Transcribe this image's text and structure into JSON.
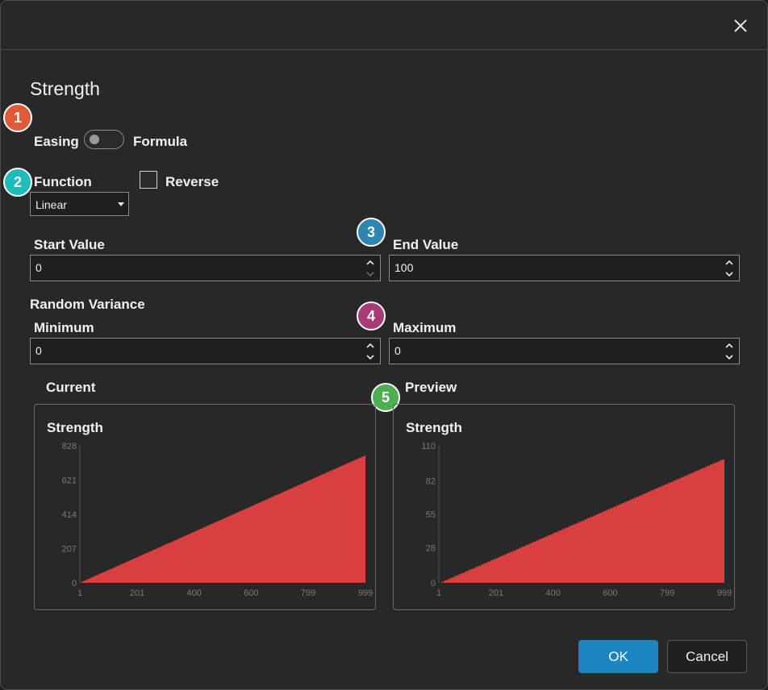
{
  "dialog": {
    "title": "Strength",
    "close_icon": "close-icon"
  },
  "mode": {
    "easing_label": "Easing",
    "formula_label": "Formula",
    "formula_enabled": false
  },
  "function": {
    "label": "Function",
    "selected": "Linear",
    "reverse_label": "Reverse",
    "reverse_checked": false
  },
  "values": {
    "start_label": "Start Value",
    "start_value": "0",
    "end_label": "End Value",
    "end_value": "100"
  },
  "variance": {
    "section_label": "Random Variance",
    "min_label": "Minimum",
    "min_value": "0",
    "max_label": "Maximum",
    "max_value": "0"
  },
  "charts": {
    "current_label": "Current",
    "preview_label": "Preview"
  },
  "badges": {
    "b1": {
      "text": "1",
      "color": "#e05a3a"
    },
    "b2": {
      "text": "2",
      "color": "#1fbcbc"
    },
    "b3": {
      "text": "3",
      "color": "#2e85b0"
    },
    "b4": {
      "text": "4",
      "color": "#a83b74"
    },
    "b5": {
      "text": "5",
      "color": "#4caf50"
    }
  },
  "buttons": {
    "ok": "OK",
    "cancel": "Cancel"
  },
  "colors": {
    "accent": "#1a85c0",
    "fill": "#d84040"
  },
  "chart_data": [
    {
      "type": "area",
      "title": "Strength",
      "x_ticks": [
        "1",
        "201",
        "400",
        "600",
        "799",
        "999"
      ],
      "y_ticks": [
        "0",
        "207",
        "414",
        "621",
        "828"
      ],
      "xlim": [
        1,
        999
      ],
      "ylim": [
        0,
        828
      ],
      "x": [
        1,
        999
      ],
      "y": [
        0,
        770
      ],
      "smooth": true
    },
    {
      "type": "area",
      "title": "Strength",
      "x_ticks": [
        "1",
        "201",
        "400",
        "600",
        "799",
        "999"
      ],
      "y_ticks": [
        "0",
        "28",
        "55",
        "82",
        "110"
      ],
      "xlim": [
        1,
        999
      ],
      "ylim": [
        0,
        110
      ],
      "x": [
        1,
        999
      ],
      "y": [
        0,
        100
      ],
      "smooth": false
    }
  ]
}
